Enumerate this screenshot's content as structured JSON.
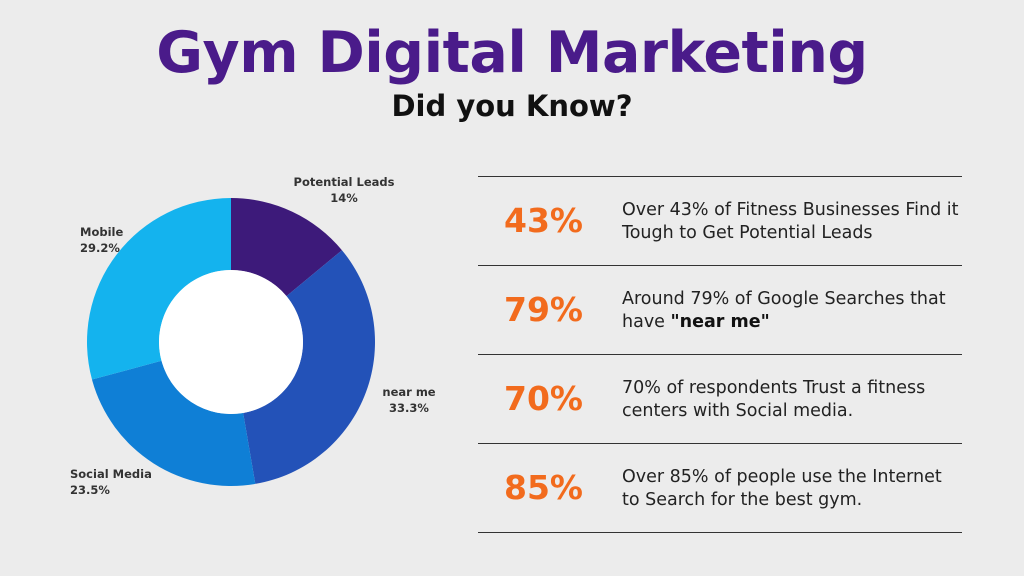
{
  "header": {
    "title": "Gym Digital Marketing",
    "subtitle": "Did you Know?"
  },
  "colors": {
    "title": "#4a1b8a",
    "accent": "#f26b1d",
    "background": "#ececec"
  },
  "chart_data": {
    "type": "pie",
    "variant": "donut",
    "slices": [
      {
        "label": "Potential Leads",
        "value": 14,
        "value_label": "14%",
        "color": "#3d1a7a"
      },
      {
        "label": "near me",
        "value": 33.3,
        "value_label": "33.3%",
        "color": "#2352b8"
      },
      {
        "label": "Social Media",
        "value": 23.5,
        "value_label": "23.5%",
        "color": "#0f7fd6"
      },
      {
        "label": "Mobile",
        "value": 29.2,
        "value_label": "29.2%",
        "color": "#14b3ee"
      }
    ]
  },
  "facts": [
    {
      "value": "43%",
      "text": "Over 43% of Fitness Businesses Find it Tough to Get Potential Leads",
      "bold": ""
    },
    {
      "value": "79%",
      "text": "Around 79% of Google Searches that have ",
      "bold": "\"near me\""
    },
    {
      "value": "70%",
      "text": "70% of respondents Trust a fitness centers with Social media.",
      "bold": ""
    },
    {
      "value": "85%",
      "text": "Over 85% of people use the Internet to Search for the best gym.",
      "bold": ""
    }
  ]
}
